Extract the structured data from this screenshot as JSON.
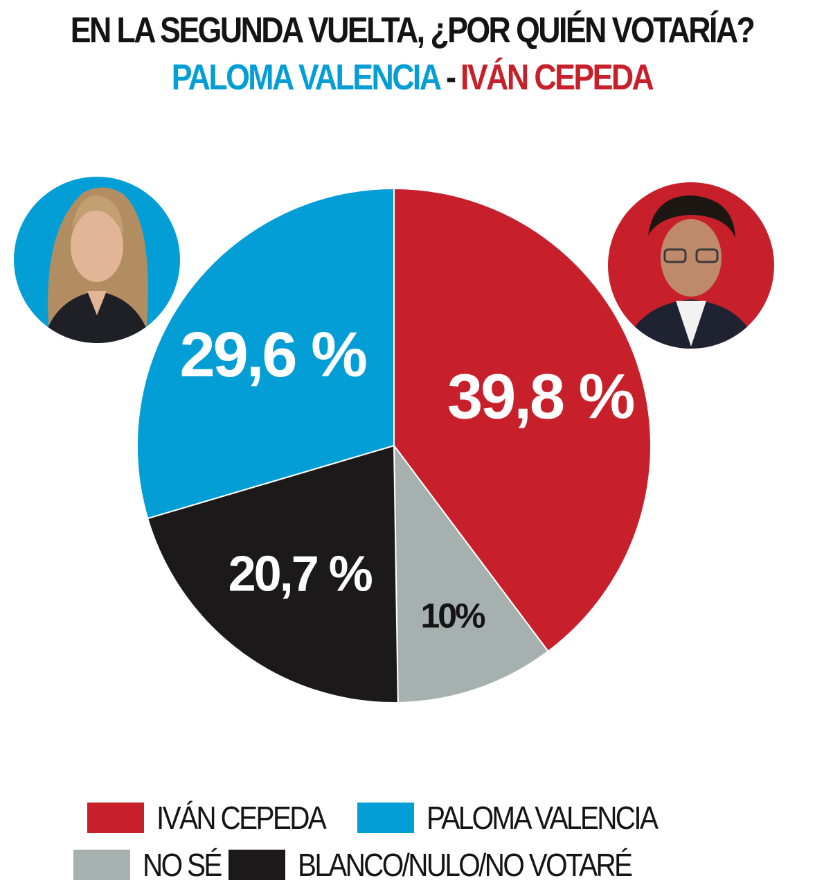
{
  "header": {
    "title": "EN LA SEGUNDA VUELTA, ¿POR QUIÉN VOTARÍA?",
    "candidate_left": "PALOMA VALENCIA",
    "separator": "-",
    "candidate_right": "IVÁN CEPEDA"
  },
  "colors": {
    "cepeda": "#c8202b",
    "valencia": "#049ed6",
    "nose": "#a6b0ae",
    "blanco": "#1c191a",
    "title": "#141414"
  },
  "chart_data": {
    "type": "pie",
    "slices": [
      {
        "label": "IVÁN CEPEDA",
        "value": 39.8,
        "display": "39,8 %",
        "color": "#c8202b"
      },
      {
        "label": "NO SÉ",
        "value": 10,
        "display": "10%",
        "color": "#a6b0ae"
      },
      {
        "label": "BLANCO/NULO/NO VOTARÉ",
        "value": 20.7,
        "display": "20,7 %",
        "color": "#1c191a"
      },
      {
        "label": "PALOMA VALENCIA",
        "value": 29.6,
        "display": "29,6 %",
        "color": "#049ed6"
      }
    ],
    "start": "top",
    "direction": "clockwise",
    "legend_position": "bottom"
  },
  "legend": {
    "cepeda": "IVÁN CEPEDA",
    "valencia": "PALOMA VALENCIA",
    "nose": "NO SÉ",
    "blanco": "BLANCO/NULO/NO VOTARÉ"
  },
  "photos": {
    "left_icon": "woman-portrait-icon",
    "right_icon": "man-portrait-icon"
  }
}
